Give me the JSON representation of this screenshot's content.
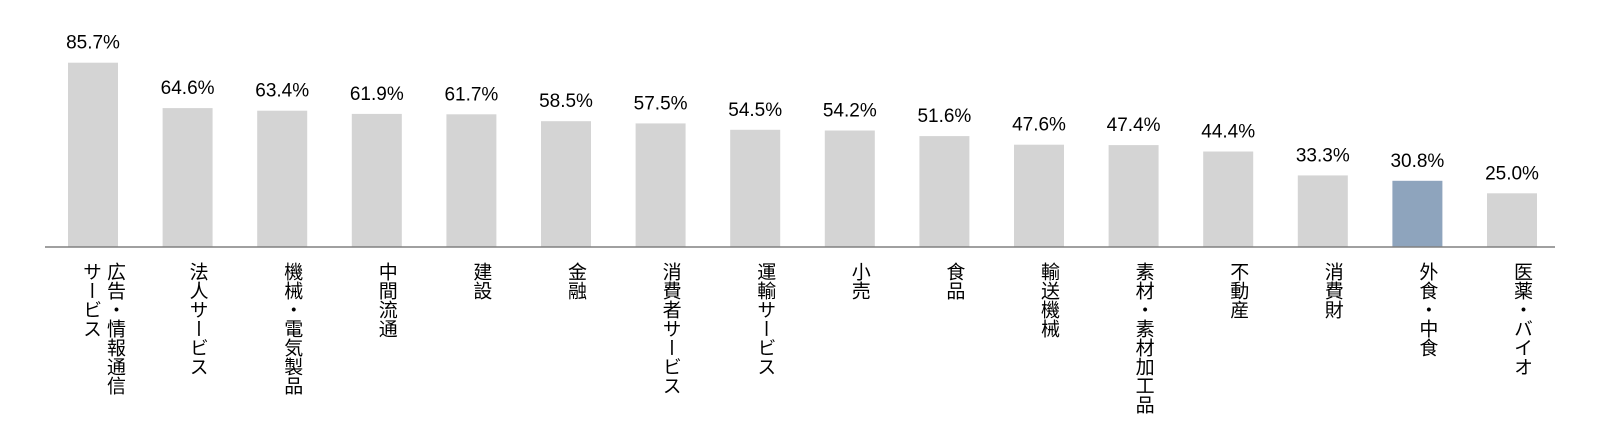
{
  "chart_data": {
    "type": "bar",
    "title": "",
    "xlabel": "",
    "ylabel": "",
    "ylim": [
      0,
      100
    ],
    "grid": false,
    "legend": "none",
    "value_format": "percent_1dp",
    "categories": [
      [
        "広告・情報通信",
        "サービス"
      ],
      [
        "法人サービス"
      ],
      [
        "機械・電気製品"
      ],
      [
        "中間流通"
      ],
      [
        "建設"
      ],
      [
        "金融"
      ],
      [
        "消費者サービス"
      ],
      [
        "運輸サービス"
      ],
      [
        "小売"
      ],
      [
        "食品"
      ],
      [
        "輸送機械"
      ],
      [
        "素材・素材加工品"
      ],
      [
        "不動産"
      ],
      [
        "消費財"
      ],
      [
        "外食・中食"
      ],
      [
        "医薬・バイオ"
      ]
    ],
    "values": [
      85.7,
      64.6,
      63.4,
      61.9,
      61.7,
      58.5,
      57.5,
      54.5,
      54.2,
      51.6,
      47.6,
      47.4,
      44.4,
      33.3,
      30.8,
      25.0
    ],
    "data_labels": [
      "85.7%",
      "64.6%",
      "63.4%",
      "61.9%",
      "61.7%",
      "58.5%",
      "57.5%",
      "54.5%",
      "54.2%",
      "51.6%",
      "47.6%",
      "47.4%",
      "44.4%",
      "33.3%",
      "30.8%",
      "25.0%"
    ],
    "highlight_index": 14,
    "colors": {
      "bar": "#d4d4d4",
      "highlight": "#8ea4bd",
      "axis": "#808080",
      "text": "#000000"
    }
  }
}
